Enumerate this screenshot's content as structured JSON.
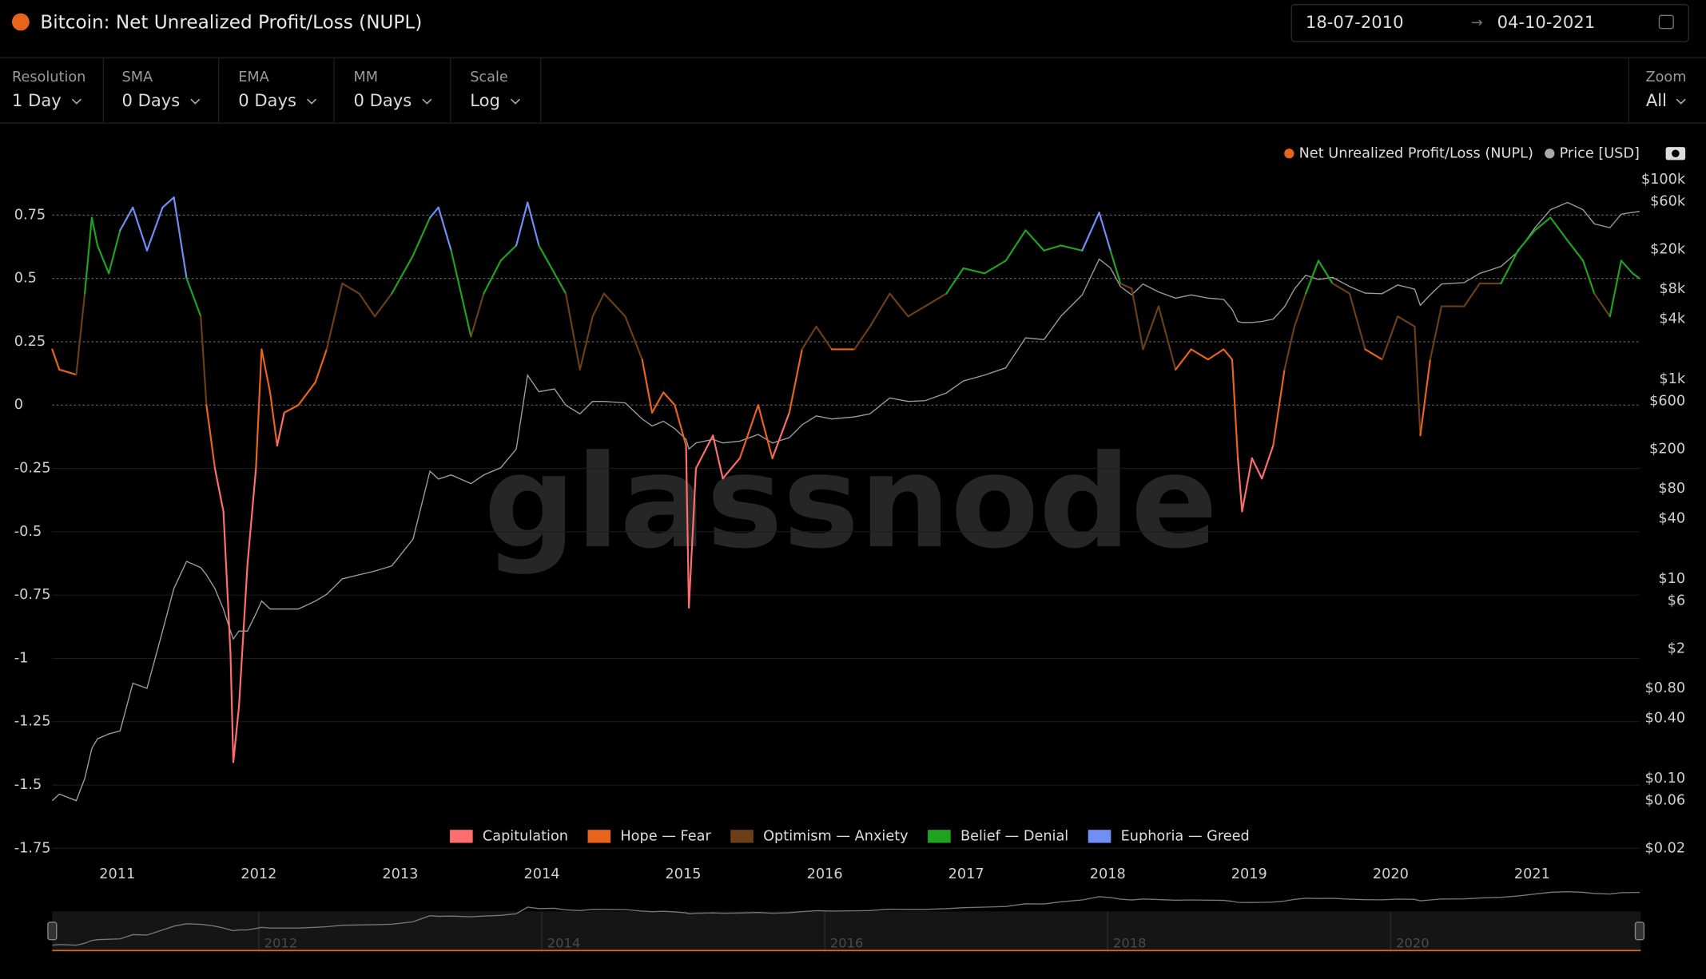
{
  "header": {
    "title": "Bitcoin: Net Unrealized Profit/Loss (NUPL)",
    "date_from": "18-07-2010",
    "date_to": "04-10-2021"
  },
  "controls": [
    {
      "label": "Resolution",
      "value": "1 Day"
    },
    {
      "label": "SMA",
      "value": "0 Days"
    },
    {
      "label": "EMA",
      "value": "0 Days"
    },
    {
      "label": "MM",
      "value": "0 Days"
    },
    {
      "label": "Scale",
      "value": "Log"
    }
  ],
  "zoom": {
    "label": "Zoom",
    "value": "All"
  },
  "watermark": "glassnode",
  "chart_data": {
    "type": "line",
    "x": [
      2010.54,
      2010.59,
      2010.71,
      2010.77,
      2010.82,
      2010.86,
      2010.94,
      2011.02,
      2011.11,
      2011.21,
      2011.32,
      2011.4,
      2011.49,
      2011.59,
      2011.63,
      2011.69,
      2011.75,
      2011.8,
      2011.82,
      2011.86,
      2011.92,
      2011.98,
      2012.02,
      2012.08,
      2012.13,
      2012.18,
      2012.28,
      2012.4,
      2012.48,
      2012.59,
      2012.71,
      2012.82,
      2012.94,
      2013.09,
      2013.21,
      2013.27,
      2013.36,
      2013.5,
      2013.59,
      2013.71,
      2013.82,
      2013.9,
      2013.98,
      2014.09,
      2014.17,
      2014.27,
      2014.36,
      2014.44,
      2014.59,
      2014.71,
      2014.78,
      2014.86,
      2014.94,
      2015.02,
      2015.04,
      2015.09,
      2015.21,
      2015.28,
      2015.4,
      2015.53,
      2015.63,
      2015.75,
      2015.84,
      2015.94,
      2016.05,
      2016.21,
      2016.32,
      2016.46,
      2016.59,
      2016.71,
      2016.86,
      2016.98,
      2017.13,
      2017.28,
      2017.42,
      2017.55,
      2017.67,
      2017.82,
      2017.94,
      2018.02,
      2018.09,
      2018.17,
      2018.25,
      2018.36,
      2018.48,
      2018.59,
      2018.71,
      2018.82,
      2018.88,
      2018.92,
      2018.95,
      2019.02,
      2019.09,
      2019.17,
      2019.25,
      2019.32,
      2019.4,
      2019.49,
      2019.59,
      2019.71,
      2019.82,
      2019.94,
      2020.05,
      2020.17,
      2020.21,
      2020.28,
      2020.36,
      2020.52,
      2020.63,
      2020.78,
      2020.9,
      2021.02,
      2021.13,
      2021.25,
      2021.36,
      2021.44,
      2021.55,
      2021.63,
      2021.71,
      2021.76
    ],
    "xlim": [
      2010.54,
      2021.76
    ],
    "xticks": [
      2011,
      2012,
      2013,
      2014,
      2015,
      2016,
      2017,
      2018,
      2019,
      2020,
      2021
    ],
    "ylim": [
      -1.75,
      0.89
    ],
    "yticks": [
      0.75,
      0.5,
      0.25,
      0,
      -0.25,
      -0.5,
      -0.75,
      -1,
      -1.25,
      -1.5,
      -1.75
    ],
    "y2lim": [
      0.02,
      100000
    ],
    "y2scale": "log",
    "y2ticks": [
      {
        "value": 100000,
        "label": "$100k"
      },
      {
        "value": 60000,
        "label": "$60k"
      },
      {
        "value": 20000,
        "label": "$20k"
      },
      {
        "value": 8000,
        "label": "$8k"
      },
      {
        "value": 4000,
        "label": "$4k"
      },
      {
        "value": 1000,
        "label": "$1k"
      },
      {
        "value": 600,
        "label": "$600"
      },
      {
        "value": 200,
        "label": "$200"
      },
      {
        "value": 80,
        "label": "$80"
      },
      {
        "value": 40,
        "label": "$40"
      },
      {
        "value": 10,
        "label": "$10"
      },
      {
        "value": 6,
        "label": "$6"
      },
      {
        "value": 2,
        "label": "$2"
      },
      {
        "value": 0.8,
        "label": "$0.80"
      },
      {
        "value": 0.4,
        "label": "$0.40"
      },
      {
        "value": 0.1,
        "label": "$0.10"
      },
      {
        "value": 0.06,
        "label": "$0.06"
      },
      {
        "value": 0.02,
        "label": "$0.02"
      }
    ],
    "grid": true,
    "series": [
      {
        "name": "Net Unrealized Profit/Loss (NUPL)",
        "color": "#e8641b",
        "values": [
          0.22,
          0.14,
          0.12,
          0.44,
          0.74,
          0.63,
          0.52,
          0.69,
          0.78,
          0.61,
          0.78,
          0.82,
          0.5,
          0.35,
          0,
          -0.25,
          -0.42,
          -0.98,
          -1.41,
          -1.19,
          -0.63,
          -0.25,
          0.22,
          0.05,
          -0.16,
          -0.03,
          0,
          0.09,
          0.22,
          0.48,
          0.44,
          0.35,
          0.44,
          0.59,
          0.74,
          0.78,
          0.61,
          0.27,
          0.44,
          0.57,
          0.63,
          0.8,
          0.63,
          0.52,
          0.44,
          0.14,
          0.35,
          0.44,
          0.35,
          0.18,
          -0.03,
          0.05,
          0,
          -0.16,
          -0.8,
          -0.25,
          -0.12,
          -0.29,
          -0.21,
          0,
          -0.21,
          -0.03,
          0.22,
          0.31,
          0.22,
          0.22,
          0.31,
          0.44,
          0.35,
          0.39,
          0.44,
          0.54,
          0.52,
          0.57,
          0.69,
          0.61,
          0.63,
          0.61,
          0.76,
          0.61,
          0.48,
          0.46,
          0.22,
          0.39,
          0.14,
          0.22,
          0.18,
          0.22,
          0.18,
          -0.21,
          -0.42,
          -0.21,
          -0.29,
          -0.16,
          0.14,
          0.31,
          0.44,
          0.57,
          0.48,
          0.44,
          0.22,
          0.18,
          0.35,
          0.31,
          -0.12,
          0.18,
          0.39,
          0.39,
          0.48,
          0.48,
          0.61,
          0.69,
          0.74,
          0.65,
          0.57,
          0.44,
          0.35,
          0.57,
          0.52,
          0.5
        ]
      },
      {
        "name": "Price [USD]",
        "color": "#9e9e9e",
        "axis": "y2",
        "values": [
          0.06,
          0.07,
          0.06,
          0.1,
          0.2,
          0.25,
          0.28,
          0.3,
          0.9,
          0.8,
          3,
          8,
          15,
          13,
          11,
          8,
          5,
          3,
          2.5,
          3,
          3,
          4.5,
          6,
          5,
          5,
          5,
          5,
          6,
          7,
          10,
          11,
          12,
          13.5,
          25,
          120,
          100,
          110,
          90,
          110,
          130,
          200,
          1100,
          750,
          800,
          550,
          450,
          600,
          600,
          580,
          400,
          340,
          380,
          320,
          250,
          200,
          230,
          250,
          230,
          240,
          280,
          230,
          260,
          350,
          430,
          400,
          420,
          450,
          650,
          600,
          610,
          730,
          960,
          1100,
          1300,
          2600,
          2500,
          4300,
          7000,
          16000,
          13000,
          8500,
          7000,
          9000,
          7500,
          6500,
          7000,
          6500,
          6300,
          5000,
          3800,
          3700,
          3700,
          3800,
          4000,
          5300,
          8000,
          11000,
          10000,
          10500,
          8500,
          7300,
          7200,
          8800,
          8000,
          5500,
          7000,
          9000,
          9300,
          11500,
          13500,
          19000,
          33000,
          50000,
          59000,
          50000,
          36000,
          33000,
          45000,
          47000,
          48000
        ]
      }
    ],
    "zones": [
      {
        "name": "Capitulation",
        "color": "#ff6e6e"
      },
      {
        "name": "Hope — Fear",
        "color": "#e8641b"
      },
      {
        "name": "Optimism — Anxiety",
        "color": "#6b3f17"
      },
      {
        "name": "Belief — Denial",
        "color": "#1fa31f"
      },
      {
        "name": "Euphoria — Greed",
        "color": "#6f8ff5"
      }
    ],
    "navigator_ticks": [
      2012,
      2014,
      2016,
      2018,
      2020
    ]
  }
}
